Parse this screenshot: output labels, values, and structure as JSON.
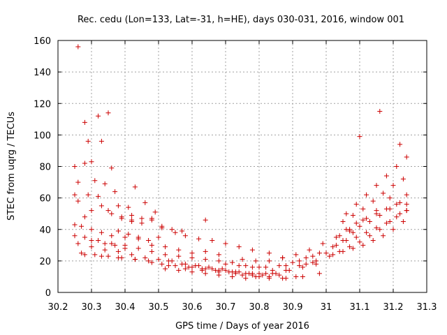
{
  "chart_data": {
    "type": "scatter",
    "title": "Rec. cedu (Lon=133, Lat=-31, h=HE), days 030-031, 2016, window 001",
    "xlabel": "GPS time / Days of year 2016",
    "ylabel": "STEC from uqrg / TECUs",
    "xlim": [
      30.2,
      31.3
    ],
    "ylim": [
      0,
      160
    ],
    "xticks": [
      30.2,
      30.3,
      30.4,
      30.5,
      30.6,
      30.7,
      30.8,
      30.9,
      31,
      31.1,
      31.2,
      31.3
    ],
    "xtick_labels": [
      "30.2",
      "30.3",
      "30.4",
      "30.5",
      "30.6",
      "30.7",
      "30.8",
      "30.9",
      "31",
      "31.1",
      "31.2",
      "31.3"
    ],
    "yticks": [
      0,
      20,
      40,
      60,
      80,
      100,
      120,
      140,
      160
    ],
    "ytick_labels": [
      "0",
      "20",
      "40",
      "60",
      "80",
      "100",
      "120",
      "140",
      "160"
    ],
    "grid": true,
    "marker": "+",
    "color": "#cc0000",
    "series": [
      {
        "name": "STEC",
        "x": [
          30.25,
          30.26,
          30.28,
          30.29,
          30.3,
          30.32,
          30.33,
          30.35,
          30.36,
          30.25,
          30.28,
          30.31,
          30.34,
          30.37,
          30.41,
          30.43,
          30.26,
          30.29,
          30.32,
          30.35,
          30.38,
          30.42,
          30.46,
          30.49,
          30.26,
          30.28,
          30.3,
          30.33,
          30.36,
          30.39,
          30.42,
          30.45,
          30.48,
          30.51,
          30.54,
          30.57,
          30.25,
          30.27,
          30.3,
          30.33,
          30.36,
          30.4,
          30.44,
          30.48,
          30.52,
          30.56,
          30.6,
          30.64,
          30.68,
          30.25,
          30.28,
          30.32,
          30.36,
          30.4,
          30.44,
          30.48,
          30.52,
          30.56,
          30.6,
          30.64,
          30.68,
          30.72,
          30.76,
          30.8,
          30.26,
          30.3,
          30.34,
          30.38,
          30.42,
          30.46,
          30.5,
          30.54,
          30.58,
          30.62,
          30.66,
          30.7,
          30.74,
          30.78,
          30.82,
          30.86,
          30.27,
          30.31,
          30.35,
          30.39,
          30.43,
          30.47,
          30.51,
          30.55,
          30.59,
          30.63,
          30.67,
          30.71,
          30.75,
          30.79,
          30.83,
          30.87,
          30.91,
          30.28,
          30.33,
          30.38,
          30.43,
          30.48,
          30.53,
          30.58,
          30.63,
          30.68,
          30.73,
          30.78,
          30.83,
          30.88,
          30.93,
          30.98,
          30.52,
          30.56,
          30.6,
          30.64,
          30.68,
          30.72,
          30.76,
          30.8,
          30.84,
          30.88,
          30.92,
          30.96,
          30.6,
          30.64,
          30.68,
          30.72,
          30.76,
          30.8,
          30.84,
          30.88,
          30.92,
          30.96,
          31.0,
          30.7,
          30.74,
          30.78,
          30.82,
          30.86,
          30.9,
          30.94,
          30.98,
          31.02,
          31.05,
          31.08,
          30.75,
          30.79,
          30.83,
          30.87,
          30.91,
          30.95,
          30.99,
          31.03,
          31.07,
          31.11,
          31.15,
          31.19,
          30.94,
          30.97,
          31.01,
          31.04,
          31.07,
          31.1,
          31.13,
          31.16,
          31.19,
          31.22,
          31.24,
          31.02,
          31.05,
          31.08,
          31.11,
          31.14,
          31.17,
          31.2,
          31.23,
          31.03,
          31.06,
          31.09,
          31.12,
          31.15,
          31.18,
          31.21,
          31.24,
          31.04,
          31.07,
          31.1,
          31.13,
          31.16,
          31.19,
          31.22,
          31.24,
          31.05,
          31.08,
          31.11,
          31.14,
          31.17,
          31.2,
          31.23,
          31.06,
          31.09,
          31.12,
          31.15,
          31.18,
          31.21,
          31.24,
          31.06,
          31.09,
          31.12,
          31.15,
          31.18,
          31.21,
          31.24,
          31.1,
          31.16,
          31.22,
          30.51,
          30.55,
          30.58,
          30.62,
          30.66,
          30.7,
          30.74,
          30.78,
          30.83,
          30.87,
          30.45,
          30.48,
          30.38,
          30.41,
          30.44,
          30.47,
          30.39,
          30.42,
          30.5,
          30.64,
          30.53,
          30.57,
          30.61,
          30.65,
          30.69,
          30.73,
          30.77,
          30.81,
          30.85,
          30.89,
          30.93,
          30.97,
          30.3,
          30.34,
          30.37,
          30.4
        ],
        "y": [
          62,
          156,
          108,
          96,
          83,
          112,
          96,
          114,
          79,
          80,
          82,
          71,
          69,
          64,
          54,
          67,
          70,
          62,
          61,
          52,
          55,
          45,
          57,
          51,
          58,
          48,
          52,
          55,
          50,
          47,
          49,
          47,
          46,
          41,
          40,
          39,
          43,
          42,
          40,
          38,
          36,
          35,
          34,
          30,
          29,
          27,
          25,
          26,
          24,
          36,
          35,
          33,
          31,
          30,
          28,
          26,
          24,
          23,
          22,
          21,
          20,
          19,
          17,
          16,
          31,
          29,
          27,
          26,
          24,
          22,
          21,
          20,
          18,
          17,
          15,
          14,
          13,
          12,
          12,
          11,
          25,
          24,
          23,
          22,
          21,
          20,
          18,
          17,
          16,
          15,
          14,
          13,
          11,
          10,
          9,
          9,
          10,
          24,
          23,
          22,
          21,
          19,
          17,
          15,
          14,
          13,
          12,
          11,
          10,
          9,
          10,
          12,
          15,
          14,
          13,
          12,
          11,
          10,
          9,
          10,
          12,
          14,
          17,
          19,
          16,
          15,
          14,
          13,
          12,
          12,
          14,
          17,
          20,
          23,
          25,
          18,
          17,
          16,
          16,
          17,
          19,
          22,
          25,
          29,
          33,
          38,
          21,
          20,
          20,
          22,
          24,
          27,
          31,
          35,
          40,
          46,
          52,
          60,
          18,
          20,
          23,
          26,
          29,
          32,
          36,
          40,
          45,
          50,
          56,
          24,
          26,
          28,
          30,
          33,
          36,
          40,
          45,
          30,
          33,
          35,
          38,
          41,
          44,
          48,
          52,
          36,
          39,
          42,
          45,
          49,
          53,
          57,
          62,
          45,
          49,
          53,
          58,
          63,
          68,
          72,
          50,
          56,
          62,
          68,
          74,
          80,
          86,
          40,
          44,
          47,
          50,
          53,
          56,
          52,
          99,
          115,
          94,
          42,
          38,
          36,
          34,
          33,
          31,
          29,
          27,
          25,
          22,
          44,
          47,
          39,
          37,
          35,
          33,
          48,
          46,
          35,
          46,
          20,
          18,
          17,
          16,
          15,
          13,
          12,
          11,
          12,
          14,
          16,
          18,
          33,
          31,
          30,
          28
        ]
      }
    ]
  }
}
